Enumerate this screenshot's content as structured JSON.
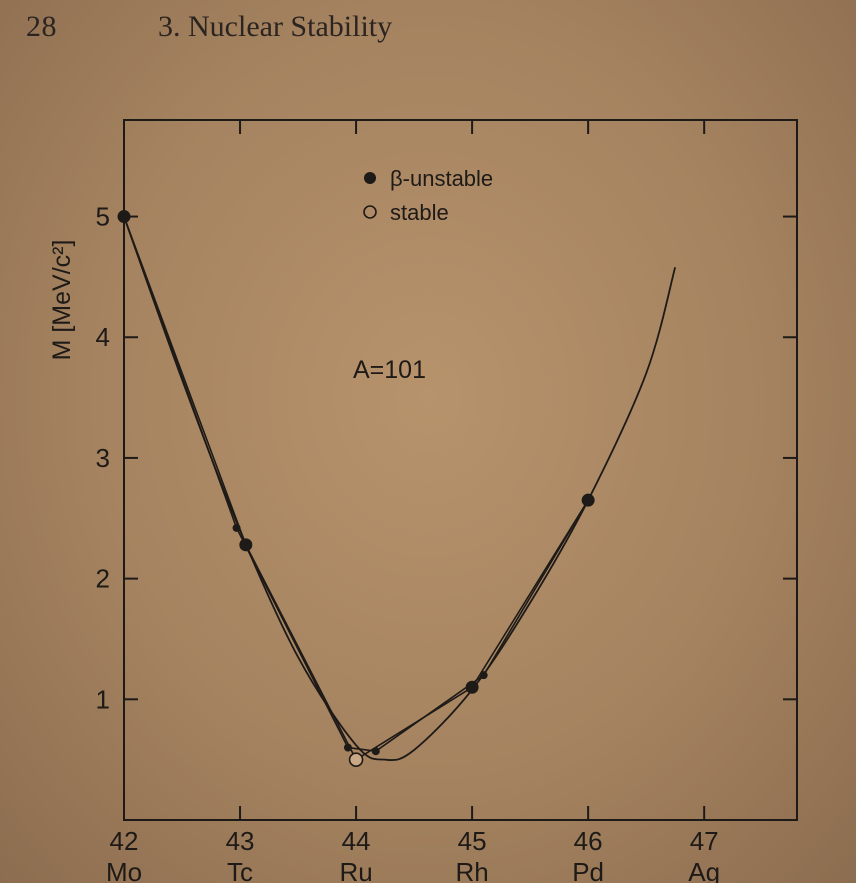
{
  "page": {
    "number": "28",
    "running_head": "3. Nuclear Stability"
  },
  "chart_data": {
    "type": "scatter",
    "title": "",
    "annotation": "A=101",
    "ylabel": "M [MeV/c²]",
    "xlabel": "",
    "xlim": [
      42,
      47.8
    ],
    "ylim": [
      0,
      5.8
    ],
    "x_ticks": [
      42,
      43,
      44,
      45,
      46,
      47
    ],
    "x_tick_labels": [
      "42",
      "43",
      "44",
      "45",
      "46",
      "47"
    ],
    "x_tick_elements": [
      "Mo",
      "Tc",
      "Ru",
      "Rh",
      "Pd",
      "Ag"
    ],
    "y_ticks": [
      1,
      2,
      3,
      4,
      5
    ],
    "legend_placement": "top-center",
    "legend": [
      {
        "marker": "filled",
        "label": "β-unstable"
      },
      {
        "marker": "open",
        "label": "stable"
      }
    ],
    "series": [
      {
        "name": "β-unstable",
        "marker": "filled",
        "points": [
          {
            "x": 42.0,
            "y": 5.0
          },
          {
            "x": 43.05,
            "y": 2.28
          },
          {
            "x": 45.0,
            "y": 1.1
          },
          {
            "x": 46.0,
            "y": 2.65
          }
        ]
      },
      {
        "name": "stable",
        "marker": "open",
        "points": [
          {
            "x": 44.0,
            "y": 0.5
          }
        ]
      }
    ],
    "small_markers": [
      {
        "x": 42.97,
        "y": 2.42
      },
      {
        "x": 43.93,
        "y": 0.6
      },
      {
        "x": 44.17,
        "y": 0.57
      },
      {
        "x": 45.1,
        "y": 1.2
      }
    ],
    "parabola": {
      "x": [
        42.0,
        42.5,
        43.0,
        43.5,
        44.0,
        44.25,
        44.5,
        45.0,
        45.5,
        46.0,
        46.5,
        46.75
      ],
      "y": [
        5.0,
        3.65,
        2.4,
        1.35,
        0.62,
        0.5,
        0.58,
        1.08,
        1.8,
        2.65,
        3.7,
        4.58
      ]
    },
    "polylines": [
      {
        "x": [
          42.0,
          42.97,
          43.93,
          44.17,
          45.1,
          46.0
        ],
        "y": [
          5.0,
          2.42,
          0.6,
          0.57,
          1.2,
          2.65
        ]
      },
      {
        "x": [
          42.0,
          43.05,
          44.0,
          45.0,
          46.0
        ],
        "y": [
          5.0,
          2.28,
          0.5,
          1.1,
          2.65
        ]
      }
    ]
  },
  "colors": {
    "ink": "#1e1a17",
    "paper": "#a58360"
  }
}
